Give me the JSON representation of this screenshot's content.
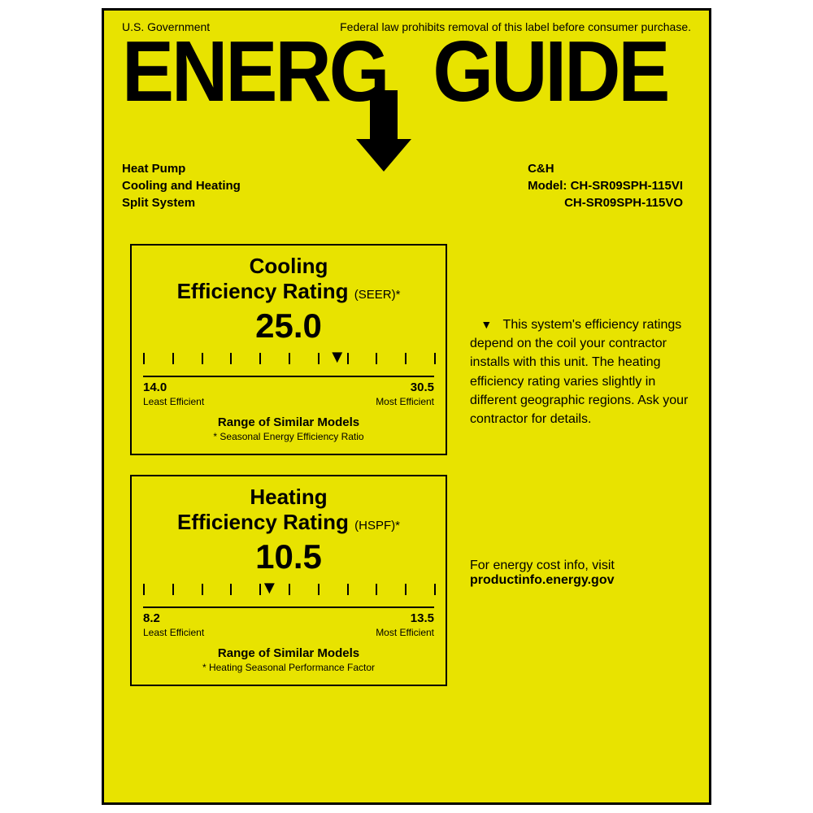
{
  "colors": {
    "background": "#e8e300",
    "ink": "#000000",
    "page_bg": "#ffffff"
  },
  "top": {
    "left": "U.S. Government",
    "right": "Federal law prohibits removal of this label before consumer purchase."
  },
  "logo": {
    "left": "ENERG",
    "right": "GUIDE"
  },
  "product": {
    "line1": "Heat Pump",
    "line2": "Cooling and Heating",
    "line3": "Split System",
    "brand": "C&H",
    "model_label": "Model:",
    "model1": "CH-SR09SPH-115VI",
    "model2": "CH-SR09SPH-115VO"
  },
  "cooling": {
    "title1": "Cooling",
    "title2": "Efficiency Rating",
    "acronym": "(SEER)*",
    "value": "25.0",
    "scale_min": 14.0,
    "scale_max": 30.5,
    "scale_min_lbl": "14.0",
    "scale_max_lbl": "30.5",
    "least": "Least Efficient",
    "most": "Most Efficient",
    "range_lbl": "Range of Similar Models",
    "footnote": "* Seasonal Energy Efficiency Ratio",
    "ticks": 11,
    "pointer_pct": 66.7
  },
  "heating": {
    "title1": "Heating",
    "title2": "Efficiency Rating",
    "acronym": "(HSPF)*",
    "value": "10.5",
    "scale_min": 8.2,
    "scale_max": 13.5,
    "scale_min_lbl": "8.2",
    "scale_max_lbl": "13.5",
    "least": "Least Efficient",
    "most": "Most Efficient",
    "range_lbl": "Range of Similar Models",
    "footnote": "* Heating Seasonal Performance Factor",
    "ticks": 11,
    "pointer_pct": 43.4
  },
  "side": {
    "text": "This system's efficiency ratings depend on the coil your contractor installs with this unit. The heating efficiency rating varies slightly in different geographic regions. Ask your contractor for details."
  },
  "link": {
    "pre": "For energy cost info, visit",
    "url": "productinfo.energy.gov"
  }
}
